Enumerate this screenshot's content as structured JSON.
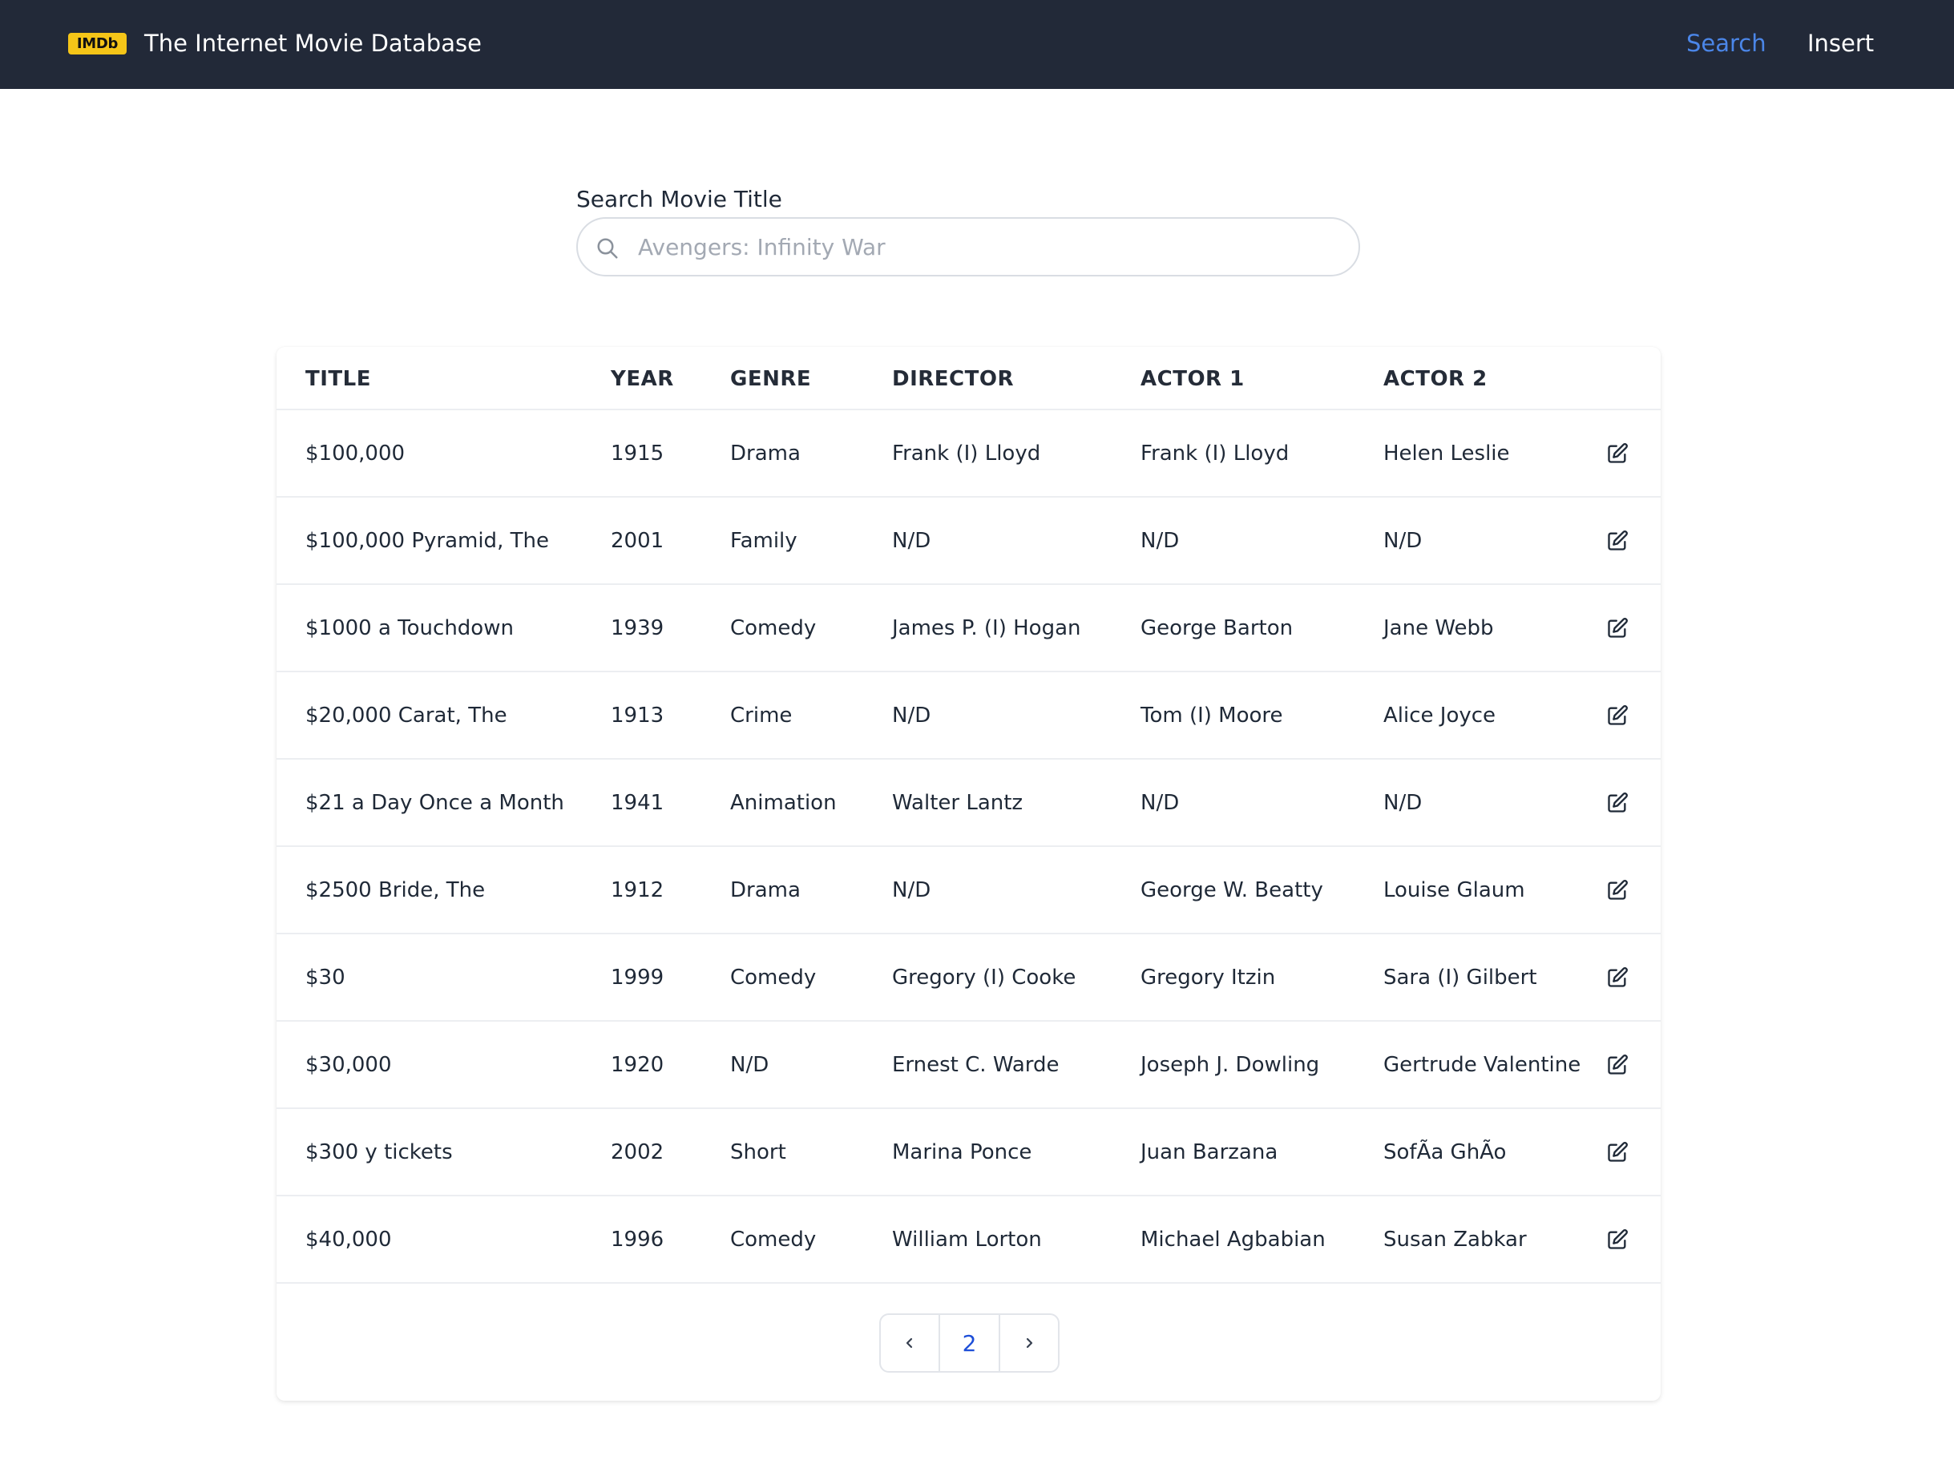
{
  "navbar": {
    "logo_text": "IMDb",
    "title": "The Internet Movie Database",
    "links": [
      {
        "label": "Search",
        "active": true,
        "color": "#4b86e8"
      },
      {
        "label": "Insert",
        "active": false,
        "color": "#ffffff"
      }
    ],
    "background": "#222938",
    "logo_color": "#f5c518"
  },
  "search": {
    "label": "Search Movie Title",
    "value": "",
    "placeholder": "Avengers: Infinity War",
    "icon": "search-icon"
  },
  "table": {
    "headers": [
      "TITLE",
      "YEAR",
      "GENRE",
      "DIRECTOR",
      "ACTOR 1",
      "ACTOR 2"
    ],
    "row_action_icon": "edit-icon",
    "rows": [
      {
        "title": "$100,000",
        "year": "1915",
        "genre": "Drama",
        "director": "Frank (I) Lloyd",
        "actor1": "Frank (I) Lloyd",
        "actor2": "Helen Leslie"
      },
      {
        "title": "$100,000 Pyramid, The",
        "year": "2001",
        "genre": "Family",
        "director": "N/D",
        "actor1": "N/D",
        "actor2": "N/D"
      },
      {
        "title": "$1000 a Touchdown",
        "year": "1939",
        "genre": "Comedy",
        "director": "James P. (I) Hogan",
        "actor1": "George Barton",
        "actor2": "Jane Webb"
      },
      {
        "title": "$20,000 Carat, The",
        "year": "1913",
        "genre": "Crime",
        "director": "N/D",
        "actor1": "Tom (I) Moore",
        "actor2": "Alice Joyce"
      },
      {
        "title": "$21 a Day Once a Month",
        "year": "1941",
        "genre": "Animation",
        "director": "Walter Lantz",
        "actor1": "N/D",
        "actor2": "N/D"
      },
      {
        "title": "$2500 Bride, The",
        "year": "1912",
        "genre": "Drama",
        "director": "N/D",
        "actor1": "George W. Beatty",
        "actor2": "Louise Glaum"
      },
      {
        "title": "$30",
        "year": "1999",
        "genre": "Comedy",
        "director": "Gregory (I) Cooke",
        "actor1": "Gregory Itzin",
        "actor2": "Sara (I) Gilbert"
      },
      {
        "title": "$30,000",
        "year": "1920",
        "genre": "N/D",
        "director": "Ernest C. Warde",
        "actor1": "Joseph J. Dowling",
        "actor2": "Gertrude Valentine"
      },
      {
        "title": "$300 y tickets",
        "year": "2002",
        "genre": "Short",
        "director": "Marina Ponce",
        "actor1": "Juan Barzana",
        "actor2": "SofÃa GhÃo"
      },
      {
        "title": "$40,000",
        "year": "1996",
        "genre": "Comedy",
        "director": "William Lorton",
        "actor1": "Michael Agbabian",
        "actor2": "Susan Zabkar"
      }
    ]
  },
  "pagination": {
    "prev_icon": "chevron-left-icon",
    "current_page": "2",
    "next_icon": "chevron-right-icon",
    "accent": "#1d4ed8"
  }
}
